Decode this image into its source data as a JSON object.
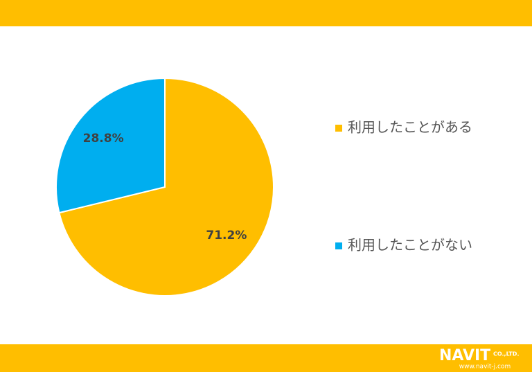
{
  "chart_data": {
    "type": "pie",
    "categories": [
      "利用したことがある",
      "利用したことがない"
    ],
    "values": [
      71.2,
      28.8
    ],
    "value_labels": [
      "71.2%",
      "28.8%"
    ],
    "colors": [
      "#FFBE00",
      "#00AEEF"
    ]
  },
  "logo": {
    "name": "NAVIT",
    "suffix": "CO.,LTD.",
    "url": "www.navit-j.com"
  }
}
